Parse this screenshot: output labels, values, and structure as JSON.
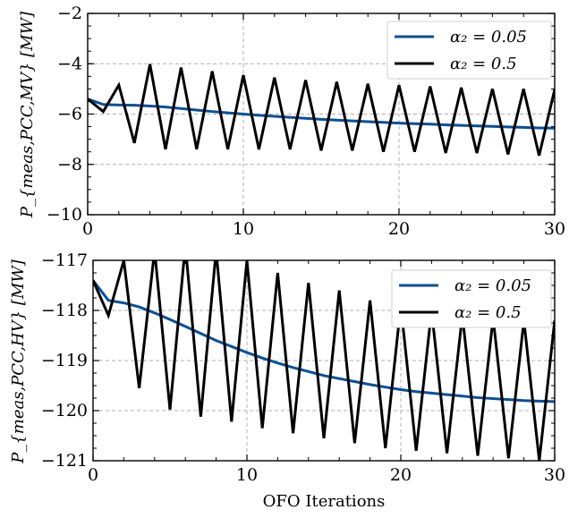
{
  "chart_data": [
    {
      "type": "line",
      "ylabel": "P_{meas,PCC,MV} [MW]",
      "xlabel": "",
      "xlim": [
        0,
        30
      ],
      "ylim": [
        -10,
        -2
      ],
      "x_ticks": [
        "0",
        "10",
        "20",
        "30"
      ],
      "y_ticks": [
        "−10",
        "−8",
        "−6",
        "−4",
        "−2"
      ],
      "x_tick_values": [
        0,
        10,
        20,
        30
      ],
      "y_tick_values": [
        -10,
        -8,
        -6,
        -4,
        -2
      ],
      "grid": true,
      "legend_position": "top-right",
      "colors": {
        "s1": "#00509e",
        "s2": "#000000"
      },
      "series": [
        {
          "name": "α₂ = 0.05",
          "x": [
            0,
            1,
            2,
            3,
            4,
            5,
            6,
            7,
            8,
            9,
            10,
            11,
            12,
            13,
            14,
            15,
            16,
            17,
            18,
            19,
            20,
            21,
            22,
            23,
            24,
            25,
            26,
            27,
            28,
            29,
            30
          ],
          "values": [
            -5.4,
            -5.62,
            -5.64,
            -5.65,
            -5.68,
            -5.72,
            -5.78,
            -5.84,
            -5.9,
            -5.95,
            -6.0,
            -6.05,
            -6.09,
            -6.13,
            -6.17,
            -6.21,
            -6.24,
            -6.27,
            -6.3,
            -6.33,
            -6.36,
            -6.38,
            -6.4,
            -6.43,
            -6.45,
            -6.47,
            -6.49,
            -6.51,
            -6.53,
            -6.55,
            -6.56
          ]
        },
        {
          "name": "α₂ = 0.5",
          "x": [
            0,
            1,
            2,
            3,
            4,
            5,
            6,
            7,
            8,
            9,
            10,
            11,
            12,
            13,
            14,
            15,
            16,
            17,
            18,
            19,
            20,
            21,
            22,
            23,
            24,
            25,
            26,
            27,
            28,
            29,
            30
          ],
          "values": [
            -5.4,
            -5.9,
            -4.85,
            -7.15,
            -4.02,
            -7.4,
            -4.15,
            -7.4,
            -4.3,
            -7.4,
            -4.45,
            -7.4,
            -4.55,
            -7.4,
            -4.65,
            -7.45,
            -4.72,
            -7.45,
            -4.8,
            -7.5,
            -4.85,
            -7.5,
            -4.9,
            -7.55,
            -4.95,
            -7.55,
            -5.0,
            -7.6,
            -5.0,
            -7.65,
            -5.02
          ]
        }
      ]
    },
    {
      "type": "line",
      "ylabel": "P_{meas,PCC,HV} [MW]",
      "xlabel": "OFO Iterations",
      "xlim": [
        0,
        30
      ],
      "ylim": [
        -121,
        -117
      ],
      "x_ticks": [
        "0",
        "10",
        "20",
        "30"
      ],
      "y_ticks": [
        "−121",
        "−120",
        "−119",
        "−118",
        "−117"
      ],
      "x_tick_values": [
        0,
        10,
        20,
        30
      ],
      "y_tick_values": [
        -121,
        -120,
        -119,
        -118,
        -117
      ],
      "grid": true,
      "legend_position": "top-right",
      "colors": {
        "s1": "#00509e",
        "s2": "#000000"
      },
      "series": [
        {
          "name": "α₂ = 0.05",
          "x": [
            0,
            1,
            2,
            3,
            4,
            5,
            6,
            7,
            8,
            9,
            10,
            11,
            12,
            13,
            14,
            15,
            16,
            17,
            18,
            19,
            20,
            21,
            22,
            23,
            24,
            25,
            26,
            27,
            28,
            29,
            30
          ],
          "values": [
            -117.4,
            -117.8,
            -117.85,
            -117.93,
            -118.05,
            -118.18,
            -118.32,
            -118.46,
            -118.6,
            -118.72,
            -118.84,
            -118.95,
            -119.05,
            -119.14,
            -119.22,
            -119.3,
            -119.36,
            -119.42,
            -119.48,
            -119.53,
            -119.58,
            -119.62,
            -119.65,
            -119.68,
            -119.71,
            -119.74,
            -119.76,
            -119.78,
            -119.8,
            -119.81,
            -119.82
          ]
        },
        {
          "name": "α₂ = 0.5",
          "x": [
            0,
            1,
            2,
            3,
            4,
            5,
            6,
            7,
            8,
            9,
            10,
            11,
            12,
            13,
            14,
            15,
            16,
            17,
            18,
            19,
            20,
            21,
            22,
            23,
            24,
            25,
            26,
            27,
            28,
            29,
            30
          ],
          "values": [
            -117.4,
            -118.1,
            -117.0,
            -119.55,
            -116.8,
            -119.98,
            -116.7,
            -120.12,
            -116.8,
            -120.22,
            -117.0,
            -120.35,
            -117.25,
            -120.45,
            -117.45,
            -120.55,
            -117.6,
            -120.65,
            -117.8,
            -120.75,
            -117.9,
            -120.8,
            -118.0,
            -120.85,
            -118.1,
            -120.9,
            -118.15,
            -120.95,
            -118.2,
            -121.0,
            -118.2
          ]
        }
      ]
    }
  ]
}
